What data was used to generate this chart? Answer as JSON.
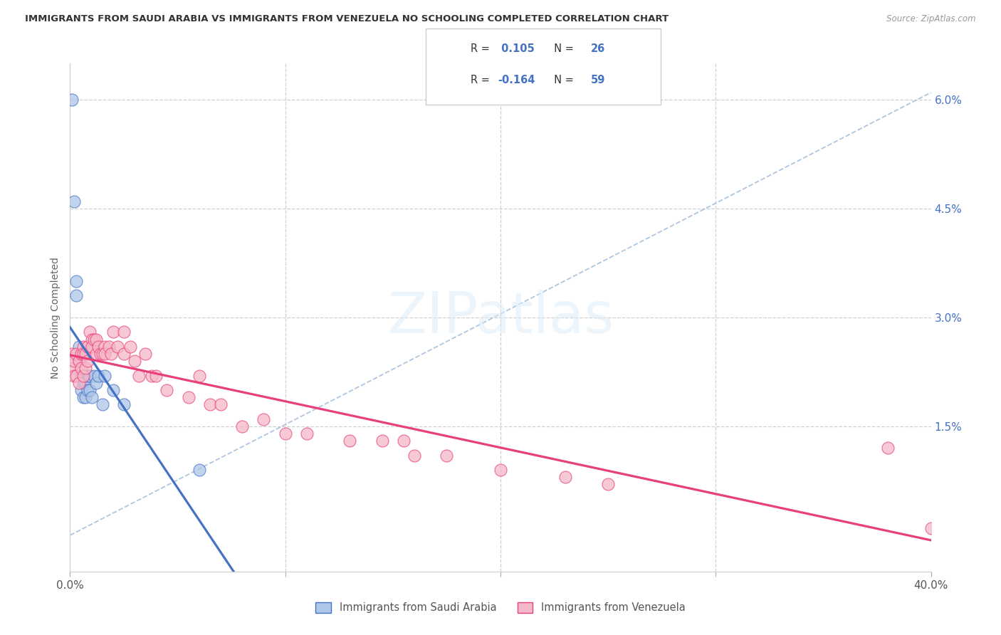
{
  "title": "IMMIGRANTS FROM SAUDI ARABIA VS IMMIGRANTS FROM VENEZUELA NO SCHOOLING COMPLETED CORRELATION CHART",
  "source": "Source: ZipAtlas.com",
  "ylabel": "No Schooling Completed",
  "right_yticks": [
    "6.0%",
    "4.5%",
    "3.0%",
    "1.5%"
  ],
  "right_ytick_vals": [
    0.06,
    0.045,
    0.03,
    0.015
  ],
  "xmin": 0.0,
  "xmax": 0.4,
  "ymin": -0.005,
  "ymax": 0.065,
  "color_blue": "#aec6e8",
  "color_pink": "#f5b8c8",
  "line_color_blue": "#4472c4",
  "line_color_pink": "#e8407a",
  "dashed_line_color": "#a0bcd8",
  "legend_blue_r": "R =  0.105",
  "legend_blue_n": "N = 26",
  "legend_pink_r": "R = -0.164",
  "legend_pink_n": "N = 59",
  "saudi_x": [
    0.001,
    0.002,
    0.003,
    0.003,
    0.004,
    0.004,
    0.005,
    0.005,
    0.006,
    0.006,
    0.006,
    0.007,
    0.007,
    0.008,
    0.008,
    0.009,
    0.009,
    0.01,
    0.011,
    0.012,
    0.013,
    0.015,
    0.016,
    0.02,
    0.025,
    0.06
  ],
  "saudi_y": [
    0.06,
    0.046,
    0.035,
    0.033,
    0.026,
    0.024,
    0.022,
    0.02,
    0.022,
    0.021,
    0.019,
    0.021,
    0.019,
    0.022,
    0.02,
    0.022,
    0.02,
    0.019,
    0.022,
    0.021,
    0.022,
    0.018,
    0.022,
    0.02,
    0.018,
    0.009
  ],
  "venezuela_x": [
    0.001,
    0.001,
    0.002,
    0.002,
    0.003,
    0.003,
    0.004,
    0.004,
    0.005,
    0.005,
    0.006,
    0.006,
    0.006,
    0.007,
    0.007,
    0.008,
    0.008,
    0.009,
    0.01,
    0.01,
    0.011,
    0.012,
    0.012,
    0.013,
    0.014,
    0.015,
    0.016,
    0.016,
    0.018,
    0.019,
    0.02,
    0.022,
    0.025,
    0.025,
    0.028,
    0.03,
    0.032,
    0.035,
    0.038,
    0.04,
    0.045,
    0.055,
    0.06,
    0.065,
    0.07,
    0.08,
    0.09,
    0.1,
    0.11,
    0.13,
    0.145,
    0.155,
    0.16,
    0.175,
    0.2,
    0.23,
    0.25,
    0.38,
    0.4
  ],
  "venezuela_y": [
    0.025,
    0.023,
    0.024,
    0.022,
    0.025,
    0.022,
    0.024,
    0.021,
    0.025,
    0.023,
    0.026,
    0.025,
    0.022,
    0.025,
    0.023,
    0.026,
    0.024,
    0.028,
    0.027,
    0.026,
    0.027,
    0.027,
    0.025,
    0.026,
    0.025,
    0.025,
    0.026,
    0.025,
    0.026,
    0.025,
    0.028,
    0.026,
    0.028,
    0.025,
    0.026,
    0.024,
    0.022,
    0.025,
    0.022,
    0.022,
    0.02,
    0.019,
    0.022,
    0.018,
    0.018,
    0.015,
    0.016,
    0.014,
    0.014,
    0.013,
    0.013,
    0.013,
    0.011,
    0.011,
    0.009,
    0.008,
    0.007,
    0.012,
    0.001
  ]
}
